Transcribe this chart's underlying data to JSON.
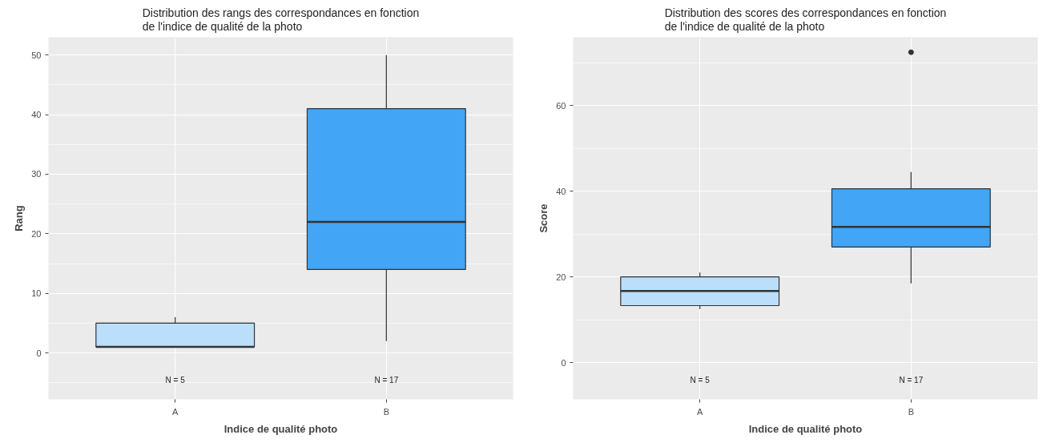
{
  "chart_data": [
    {
      "type": "box",
      "title": "Distribution des rangs des correspondances en fonction\nde l'indice de qualité de la photo",
      "xlabel": "Indice de qualité photo",
      "ylabel": "Rang",
      "categories": [
        "A",
        "B"
      ],
      "colors": [
        "#bbdefb",
        "#42a5f5"
      ],
      "boxes": [
        {
          "low": 1,
          "q1": 1,
          "median": 1,
          "q3": 5,
          "high": 6
        },
        {
          "low": 2,
          "q1": 14,
          "median": 22,
          "q3": 41,
          "high": 50
        }
      ],
      "ylim": [
        -7.8,
        53
      ],
      "yticks": [
        0,
        10,
        20,
        30,
        40,
        50
      ],
      "grid": true,
      "annotations": [
        "N = 5",
        "N = 17"
      ]
    },
    {
      "type": "box",
      "title": "Distribution des scores des correspondances en fonction\nde l'indice de qualité de la photo",
      "xlabel": "Indice de qualité photo",
      "ylabel": "Score",
      "categories": [
        "A",
        "B"
      ],
      "colors": [
        "#bbdefb",
        "#42a5f5"
      ],
      "boxes": [
        {
          "low": 12.5,
          "q1": 13.3,
          "median": 16.7,
          "q3": 20,
          "high": 21
        },
        {
          "low": 18.5,
          "q1": 27,
          "median": 31.7,
          "q3": 40.6,
          "high": 44.5,
          "outliers": [
            72.5
          ]
        }
      ],
      "ylim": [
        -8.6,
        76
      ],
      "yticks": [
        0,
        20,
        40,
        60
      ],
      "grid": true,
      "annotations": [
        "N = 5",
        "N = 17"
      ]
    }
  ]
}
